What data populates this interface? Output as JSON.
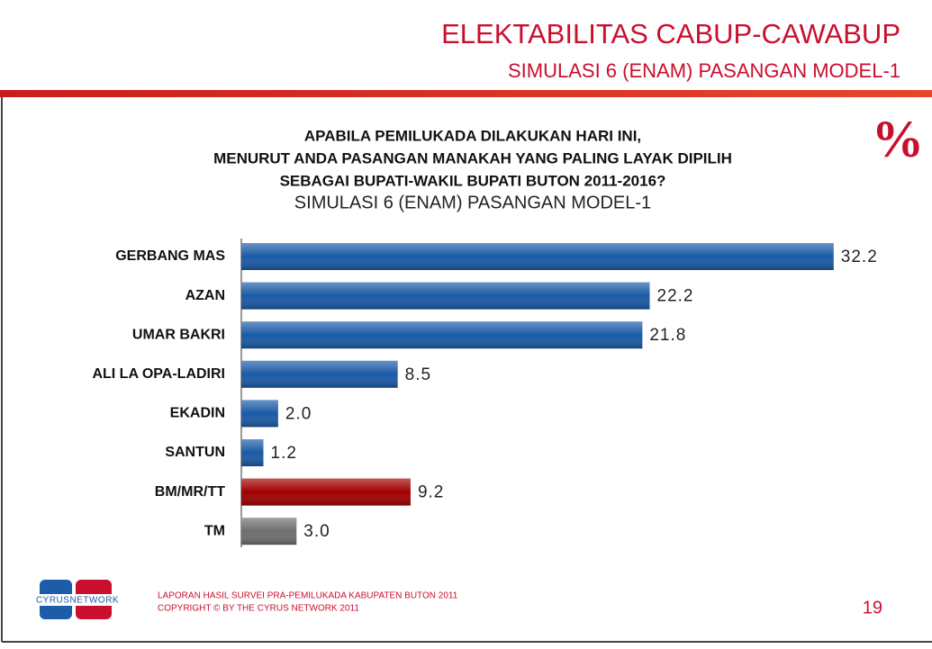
{
  "header": {
    "title": "ELEKTABILITAS CABUP-CAWABUP",
    "subtitle": "SIMULASI 6 (ENAM) PASANGAN MODEL-1"
  },
  "unit_symbol": "%",
  "chart_data": {
    "type": "bar",
    "orientation": "horizontal",
    "title": [
      "APABILA PEMILUKADA DILAKUKAN HARI INI,",
      "MENURUT ANDA PASANGAN MANAKAH YANG PALING LAYAK DIPILIH",
      "SEBAGAI BUPATI-WAKIL BUPATI BUTON 2011-2016?"
    ],
    "subtitle": "SIMULASI 6 (ENAM) PASANGAN MODEL-1",
    "categories": [
      "GERBANG MAS",
      "AZAN",
      "UMAR BAKRI",
      "ALI LA OPA-LADIRI",
      "EKADIN",
      "SANTUN",
      "BM/MR/TT",
      "TM"
    ],
    "values": [
      32.2,
      22.2,
      21.8,
      8.5,
      2,
      1.2,
      9.2,
      3
    ],
    "value_labels": [
      "32.2",
      "22.2",
      "21.8",
      "8.5",
      "2.0",
      "1.2",
      "9.2",
      "3.0"
    ],
    "colors": [
      "#1a5aa6",
      "#1a5aa6",
      "#1a5aa6",
      "#1a5aa6",
      "#1a5aa6",
      "#1a5aa6",
      "#a00000",
      "#6e6e6e"
    ],
    "xlim": [
      0,
      35
    ]
  },
  "footer": {
    "logo": "CYRUSNETWORK",
    "lines": [
      "LAPORAN HASIL SURVEI PRA-PEMILUKADA KABUPATEN BUTON 2011",
      "COPYRIGHT © BY THE CYRUS NETWORK 2011"
    ],
    "page": "19"
  }
}
